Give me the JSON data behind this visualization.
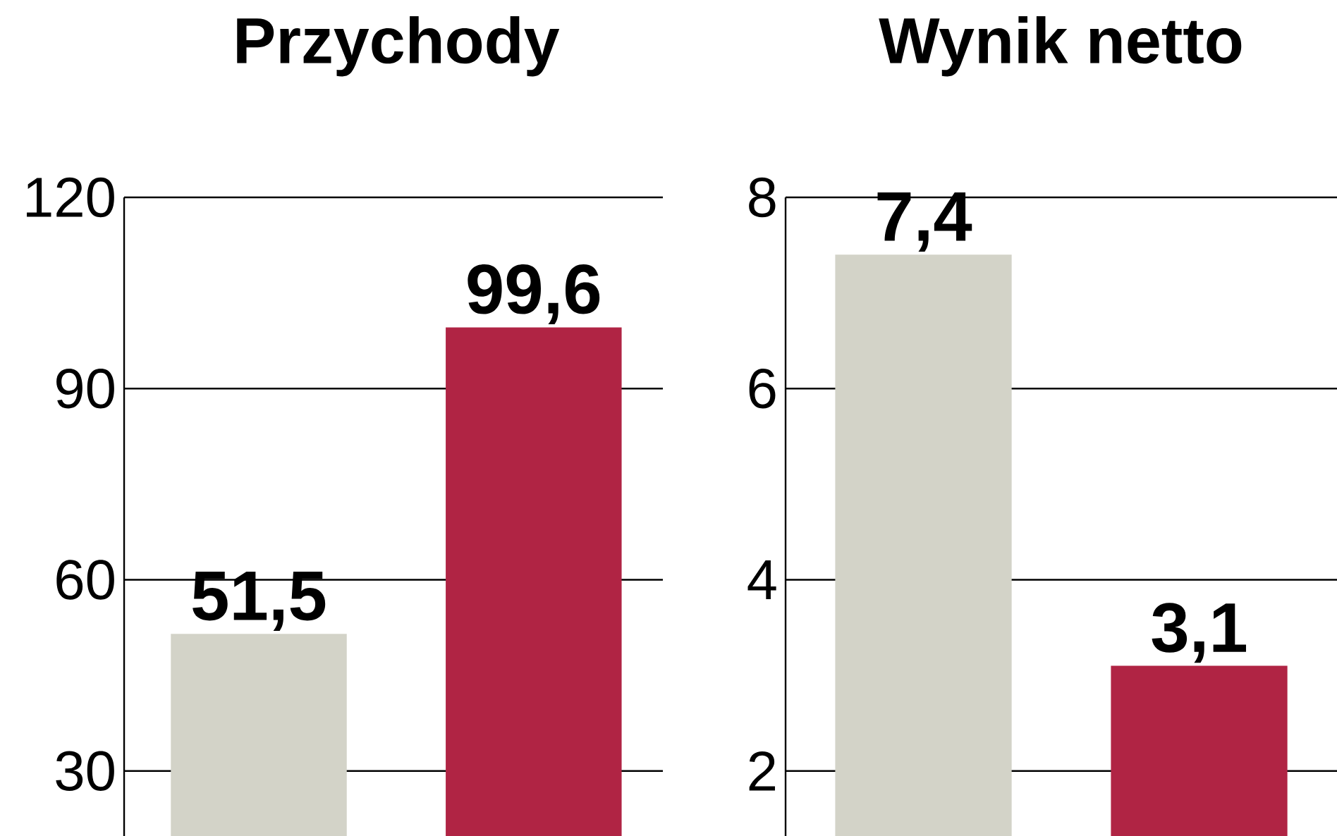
{
  "chart_data": [
    {
      "type": "bar",
      "title": "Przychody",
      "categories": [
        null,
        null
      ],
      "values": [
        51.5,
        99.6
      ],
      "colors": [
        "#d3d3c8",
        "#b02444"
      ],
      "value_labels": [
        "51,5",
        "99,6"
      ],
      "ylim": [
        19.8,
        120
      ],
      "yticks": [
        30,
        60,
        90,
        120
      ],
      "grid": "y"
    },
    {
      "type": "bar",
      "title": "Wynik netto",
      "categories": [
        null,
        null
      ],
      "values": [
        7.4,
        3.1
      ],
      "colors": [
        "#d3d3c8",
        "#b02444"
      ],
      "value_labels": [
        "7,4",
        "3,1"
      ],
      "ylim": [
        1.32,
        8
      ],
      "yticks": [
        2,
        4,
        6,
        8
      ],
      "grid": "y"
    }
  ]
}
